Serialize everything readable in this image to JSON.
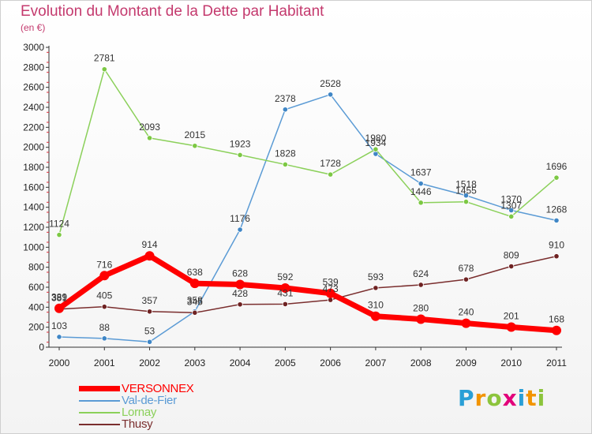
{
  "header": {
    "title": "Evolution du Montant de la Dette par Habitant",
    "subtitle": "(en €)"
  },
  "brand": {
    "letters": [
      "P",
      "r",
      "o",
      "x",
      "i",
      "t",
      "i"
    ],
    "colors": [
      "#2a9fd6",
      "#f29400",
      "#8cc43c",
      "#e2007a",
      "#2a9fd6",
      "#f29400",
      "#8cc43c"
    ]
  },
  "chart_data": {
    "type": "line",
    "title": "Evolution du Montant de la Dette par Habitant",
    "subtitle": "(en €)",
    "xlabel": "",
    "ylabel": "",
    "x": [
      "2000",
      "2001",
      "2002",
      "2003",
      "2004",
      "2005",
      "2006",
      "2007",
      "2008",
      "2009",
      "2010",
      "2011"
    ],
    "ylim": [
      0,
      3000
    ],
    "yticks": [
      0,
      200,
      400,
      600,
      800,
      1000,
      1200,
      1400,
      1600,
      1800,
      2000,
      2200,
      2400,
      2600,
      2800,
      3000
    ],
    "grid": false,
    "legend_position": "bottom-left",
    "series": [
      {
        "name": "VERSONNEX",
        "color": "#ff0000",
        "values": [
          389,
          716,
          914,
          638,
          628,
          592,
          539,
          310,
          280,
          240,
          201,
          168
        ]
      },
      {
        "name": "Val-de-Fier",
        "color": "#5b9bd5",
        "values": [
          103,
          88,
          53,
          358,
          1176,
          2378,
          2528,
          1934,
          1637,
          1518,
          1370,
          1268
        ]
      },
      {
        "name": "Lornay",
        "color": "#8bd05a",
        "values": [
          1124,
          2781,
          2093,
          2015,
          1923,
          1828,
          1728,
          1980,
          1446,
          1455,
          1307,
          1696
        ]
      },
      {
        "name": "Thusy",
        "color": "#7a2e2e",
        "values": [
          381,
          405,
          357,
          345,
          428,
          431,
          473,
          593,
          624,
          678,
          809,
          910
        ]
      }
    ]
  }
}
